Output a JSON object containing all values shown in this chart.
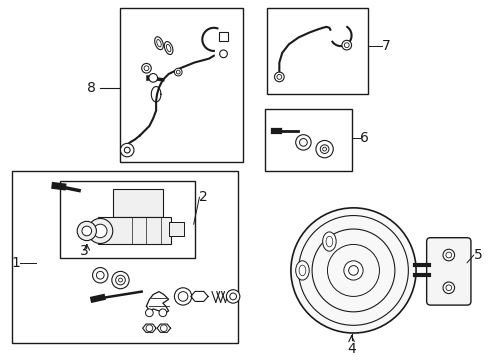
{
  "bg_color": "#ffffff",
  "line_color": "#1a1a1a",
  "fig_width": 4.89,
  "fig_height": 3.6,
  "dpi": 100,
  "label_fontsize": 10
}
